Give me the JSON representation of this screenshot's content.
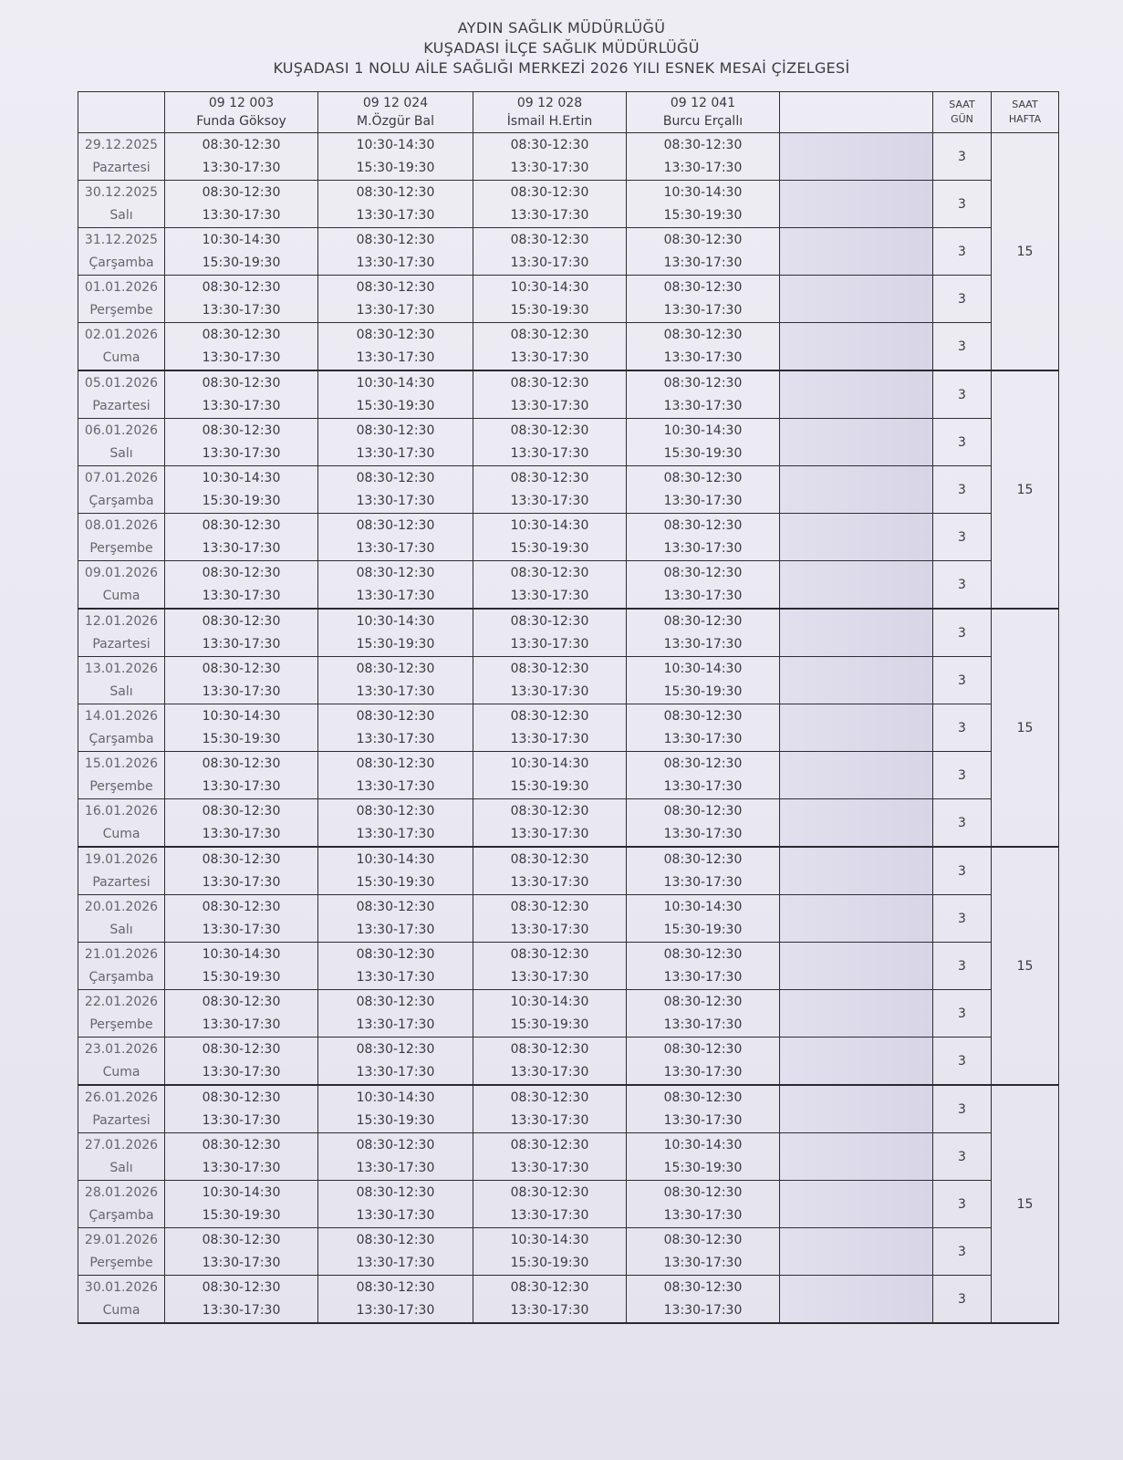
{
  "titles": [
    "AYDIN SAĞLIK MÜDÜRLÜĞÜ",
    "KUŞADASI  İLÇE SAĞLIK MÜDÜRLÜĞÜ",
    "KUŞADASI 1 NOLU AİLE SAĞLIĞI MERKEZİ 2026 YILI ESNEK MESAİ ÇİZELGESİ"
  ],
  "columns": [
    {
      "code": "09 12 003",
      "name": "Funda Göksoy"
    },
    {
      "code": "09 12 024",
      "name": "M.Özgür Bal"
    },
    {
      "code": "09 12 028",
      "name": "İsmail H.Ertin"
    },
    {
      "code": "09 12 041",
      "name": "Burcu Erçallı"
    }
  ],
  "saat_gun_header": [
    "SAAT",
    "GÜN"
  ],
  "saat_hafta_header": [
    "SAAT",
    "HAFTA"
  ],
  "weeks": [
    {
      "hafta": "15",
      "rows": [
        {
          "date": "29.12.2025",
          "day": "Pazartesi",
          "gun": "3",
          "shifts": [
            [
              "08:30-12:30",
              "13:30-17:30"
            ],
            [
              "10:30-14:30",
              "15:30-19:30"
            ],
            [
              "08:30-12:30",
              "13:30-17:30"
            ],
            [
              "08:30-12:30",
              "13:30-17:30"
            ]
          ]
        },
        {
          "date": "30.12.2025",
          "day": "Salı",
          "gun": "3",
          "shifts": [
            [
              "08:30-12:30",
              "13:30-17:30"
            ],
            [
              "08:30-12:30",
              "13:30-17:30"
            ],
            [
              "08:30-12:30",
              "13:30-17:30"
            ],
            [
              "10:30-14:30",
              "15:30-19:30"
            ]
          ]
        },
        {
          "date": "31.12.2025",
          "day": "Çarşamba",
          "gun": "3",
          "shifts": [
            [
              "10:30-14:30",
              "15:30-19:30"
            ],
            [
              "08:30-12:30",
              "13:30-17:30"
            ],
            [
              "08:30-12:30",
              "13:30-17:30"
            ],
            [
              "08:30-12:30",
              "13:30-17:30"
            ]
          ]
        },
        {
          "date": "01.01.2026",
          "day": "Perşembe",
          "gun": "3",
          "shifts": [
            [
              "08:30-12:30",
              "13:30-17:30"
            ],
            [
              "08:30-12:30",
              "13:30-17:30"
            ],
            [
              "10:30-14:30",
              "15:30-19:30"
            ],
            [
              "08:30-12:30",
              "13:30-17:30"
            ]
          ]
        },
        {
          "date": "02.01.2026",
          "day": "Cuma",
          "gun": "3",
          "shifts": [
            [
              "08:30-12:30",
              "13:30-17:30"
            ],
            [
              "08:30-12:30",
              "13:30-17:30"
            ],
            [
              "08:30-12:30",
              "13:30-17:30"
            ],
            [
              "08:30-12:30",
              "13:30-17:30"
            ]
          ]
        }
      ]
    },
    {
      "hafta": "15",
      "rows": [
        {
          "date": "05.01.2026",
          "day": "Pazartesi",
          "gun": "3",
          "shifts": [
            [
              "08:30-12:30",
              "13:30-17:30"
            ],
            [
              "10:30-14:30",
              "15:30-19:30"
            ],
            [
              "08:30-12:30",
              "13:30-17:30"
            ],
            [
              "08:30-12:30",
              "13:30-17:30"
            ]
          ]
        },
        {
          "date": "06.01.2026",
          "day": "Salı",
          "gun": "3",
          "shifts": [
            [
              "08:30-12:30",
              "13:30-17:30"
            ],
            [
              "08:30-12:30",
              "13:30-17:30"
            ],
            [
              "08:30-12:30",
              "13:30-17:30"
            ],
            [
              "10:30-14:30",
              "15:30-19:30"
            ]
          ]
        },
        {
          "date": "07.01.2026",
          "day": "Çarşamba",
          "gun": "3",
          "shifts": [
            [
              "10:30-14:30",
              "15:30-19:30"
            ],
            [
              "08:30-12:30",
              "13:30-17:30"
            ],
            [
              "08:30-12:30",
              "13:30-17:30"
            ],
            [
              "08:30-12:30",
              "13:30-17:30"
            ]
          ]
        },
        {
          "date": "08.01.2026",
          "day": "Perşembe",
          "gun": "3",
          "shifts": [
            [
              "08:30-12:30",
              "13:30-17:30"
            ],
            [
              "08:30-12:30",
              "13:30-17:30"
            ],
            [
              "10:30-14:30",
              "15:30-19:30"
            ],
            [
              "08:30-12:30",
              "13:30-17:30"
            ]
          ]
        },
        {
          "date": "09.01.2026",
          "day": "Cuma",
          "gun": "3",
          "shifts": [
            [
              "08:30-12:30",
              "13:30-17:30"
            ],
            [
              "08:30-12:30",
              "13:30-17:30"
            ],
            [
              "08:30-12:30",
              "13:30-17:30"
            ],
            [
              "08:30-12:30",
              "13:30-17:30"
            ]
          ]
        }
      ]
    },
    {
      "hafta": "15",
      "rows": [
        {
          "date": "12.01.2026",
          "day": "Pazartesi",
          "gun": "3",
          "shifts": [
            [
              "08:30-12:30",
              "13:30-17:30"
            ],
            [
              "10:30-14:30",
              "15:30-19:30"
            ],
            [
              "08:30-12:30",
              "13:30-17:30"
            ],
            [
              "08:30-12:30",
              "13:30-17:30"
            ]
          ]
        },
        {
          "date": "13.01.2026",
          "day": "Salı",
          "gun": "3",
          "shifts": [
            [
              "08:30-12:30",
              "13:30-17:30"
            ],
            [
              "08:30-12:30",
              "13:30-17:30"
            ],
            [
              "08:30-12:30",
              "13:30-17:30"
            ],
            [
              "10:30-14:30",
              "15:30-19:30"
            ]
          ]
        },
        {
          "date": "14.01.2026",
          "day": "Çarşamba",
          "gun": "3",
          "shifts": [
            [
              "10:30-14:30",
              "15:30-19:30"
            ],
            [
              "08:30-12:30",
              "13:30-17:30"
            ],
            [
              "08:30-12:30",
              "13:30-17:30"
            ],
            [
              "08:30-12:30",
              "13:30-17:30"
            ]
          ]
        },
        {
          "date": "15.01.2026",
          "day": "Perşembe",
          "gun": "3",
          "shifts": [
            [
              "08:30-12:30",
              "13:30-17:30"
            ],
            [
              "08:30-12:30",
              "13:30-17:30"
            ],
            [
              "10:30-14:30",
              "15:30-19:30"
            ],
            [
              "08:30-12:30",
              "13:30-17:30"
            ]
          ]
        },
        {
          "date": "16.01.2026",
          "day": "Cuma",
          "gun": "3",
          "shifts": [
            [
              "08:30-12:30",
              "13:30-17:30"
            ],
            [
              "08:30-12:30",
              "13:30-17:30"
            ],
            [
              "08:30-12:30",
              "13:30-17:30"
            ],
            [
              "08:30-12:30",
              "13:30-17:30"
            ]
          ]
        }
      ]
    },
    {
      "hafta": "15",
      "rows": [
        {
          "date": "19.01.2026",
          "day": "Pazartesi",
          "gun": "3",
          "shifts": [
            [
              "08:30-12:30",
              "13:30-17:30"
            ],
            [
              "10:30-14:30",
              "15:30-19:30"
            ],
            [
              "08:30-12:30",
              "13:30-17:30"
            ],
            [
              "08:30-12:30",
              "13:30-17:30"
            ]
          ]
        },
        {
          "date": "20.01.2026",
          "day": "Salı",
          "gun": "3",
          "shifts": [
            [
              "08:30-12:30",
              "13:30-17:30"
            ],
            [
              "08:30-12:30",
              "13:30-17:30"
            ],
            [
              "08:30-12:30",
              "13:30-17:30"
            ],
            [
              "10:30-14:30",
              "15:30-19:30"
            ]
          ]
        },
        {
          "date": "21.01.2026",
          "day": "Çarşamba",
          "gun": "3",
          "shifts": [
            [
              "10:30-14:30",
              "15:30-19:30"
            ],
            [
              "08:30-12:30",
              "13:30-17:30"
            ],
            [
              "08:30-12:30",
              "13:30-17:30"
            ],
            [
              "08:30-12:30",
              "13:30-17:30"
            ]
          ]
        },
        {
          "date": "22.01.2026",
          "day": "Perşembe",
          "gun": "3",
          "shifts": [
            [
              "08:30-12:30",
              "13:30-17:30"
            ],
            [
              "08:30-12:30",
              "13:30-17:30"
            ],
            [
              "10:30-14:30",
              "15:30-19:30"
            ],
            [
              "08:30-12:30",
              "13:30-17:30"
            ]
          ]
        },
        {
          "date": "23.01.2026",
          "day": "Cuma",
          "gun": "3",
          "shifts": [
            [
              "08:30-12:30",
              "13:30-17:30"
            ],
            [
              "08:30-12:30",
              "13:30-17:30"
            ],
            [
              "08:30-12:30",
              "13:30-17:30"
            ],
            [
              "08:30-12:30",
              "13:30-17:30"
            ]
          ]
        }
      ]
    },
    {
      "hafta": "15",
      "rows": [
        {
          "date": "26.01.2026",
          "day": "Pazartesi",
          "gun": "3",
          "shifts": [
            [
              "08:30-12:30",
              "13:30-17:30"
            ],
            [
              "10:30-14:30",
              "15:30-19:30"
            ],
            [
              "08:30-12:30",
              "13:30-17:30"
            ],
            [
              "08:30-12:30",
              "13:30-17:30"
            ]
          ]
        },
        {
          "date": "27.01.2026",
          "day": "Salı",
          "gun": "3",
          "shifts": [
            [
              "08:30-12:30",
              "13:30-17:30"
            ],
            [
              "08:30-12:30",
              "13:30-17:30"
            ],
            [
              "08:30-12:30",
              "13:30-17:30"
            ],
            [
              "10:30-14:30",
              "15:30-19:30"
            ]
          ]
        },
        {
          "date": "28.01.2026",
          "day": "Çarşamba",
          "gun": "3",
          "shifts": [
            [
              "10:30-14:30",
              "15:30-19:30"
            ],
            [
              "08:30-12:30",
              "13:30-17:30"
            ],
            [
              "08:30-12:30",
              "13:30-17:30"
            ],
            [
              "08:30-12:30",
              "13:30-17:30"
            ]
          ]
        },
        {
          "date": "29.01.2026",
          "day": "Perşembe",
          "gun": "3",
          "shifts": [
            [
              "08:30-12:30",
              "13:30-17:30"
            ],
            [
              "08:30-12:30",
              "13:30-17:30"
            ],
            [
              "10:30-14:30",
              "15:30-19:30"
            ],
            [
              "08:30-12:30",
              "13:30-17:30"
            ]
          ]
        },
        {
          "date": "30.01.2026",
          "day": "Cuma",
          "gun": "3",
          "shifts": [
            [
              "08:30-12:30",
              "13:30-17:30"
            ],
            [
              "08:30-12:30",
              "13:30-17:30"
            ],
            [
              "08:30-12:30",
              "13:30-17:30"
            ],
            [
              "08:30-12:30",
              "13:30-17:30"
            ]
          ]
        }
      ]
    }
  ]
}
